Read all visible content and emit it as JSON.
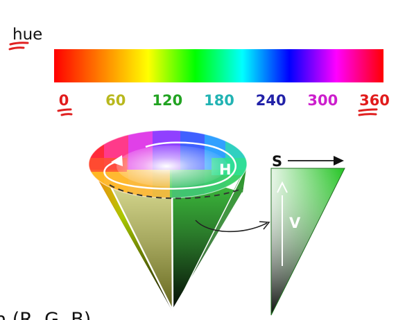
{
  "hue_label": "hue",
  "hue_bar": {
    "stops": [
      "#ff0000",
      "#ff8000",
      "#ffff00",
      "#00ff00",
      "#00ffff",
      "#0000ff",
      "#ff00ff",
      "#ff0000"
    ]
  },
  "ticks": [
    {
      "label": "0",
      "value": 0,
      "color": "#e11b1b"
    },
    {
      "label": "60",
      "value": 60,
      "color": "#b8b81e"
    },
    {
      "label": "120",
      "value": 120,
      "color": "#22a322"
    },
    {
      "label": "180",
      "value": 180,
      "color": "#22b3b3"
    },
    {
      "label": "240",
      "value": 240,
      "color": "#2222a8"
    },
    {
      "label": "300",
      "value": 300,
      "color": "#cc1ecc"
    },
    {
      "label": "360",
      "value": 360,
      "color": "#e11b1b"
    }
  ],
  "cone": {
    "h_label": "H"
  },
  "triangle": {
    "s_label": "S",
    "v_label": "V"
  },
  "bottom_text": "n (R, G, B)"
}
